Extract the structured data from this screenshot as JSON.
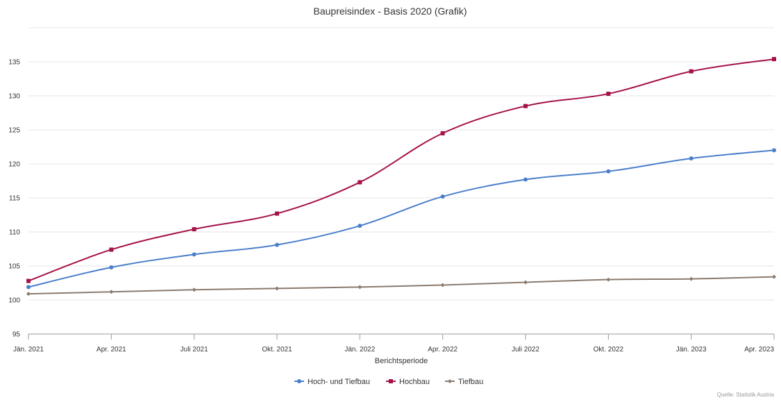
{
  "chart_data": {
    "type": "line",
    "title": "Baupreisindex - Basis 2020 (Grafik)",
    "xlabel": "Berichtsperiode",
    "ylabel": "",
    "categories": [
      "Jän. 2021",
      "Apr. 2021",
      "Juli 2021",
      "Okt. 2021",
      "Jän. 2022",
      "Apr. 2022",
      "Juli 2022",
      "Okt. 2022",
      "Jän. 2023",
      "Apr. 2023"
    ],
    "ylim": [
      95,
      140
    ],
    "yticks": [
      "95",
      "100",
      "105",
      "110",
      "115",
      "120",
      "125",
      "130",
      "135"
    ],
    "grid": true,
    "legend_position": "bottom-center",
    "source": "Quelle: Statistik Austria",
    "series": [
      {
        "name": "Hoch- und Tiefbau",
        "color": "#4a7ecb",
        "marker": "circle",
        "values": [
          101.9,
          104.8,
          106.7,
          108.1,
          110.9,
          115.2,
          117.7,
          118.9,
          120.8,
          122.0
        ]
      },
      {
        "name": "Hochbau",
        "color": "#a5114a",
        "marker": "square",
        "values": [
          102.8,
          107.4,
          110.4,
          112.7,
          117.3,
          124.5,
          128.5,
          130.3,
          133.6,
          135.4
        ]
      },
      {
        "name": "Tiefbau",
        "color": "#8a7a6e",
        "marker": "diamond",
        "values": [
          100.9,
          101.2,
          101.5,
          101.7,
          101.9,
          102.2,
          102.6,
          103.0,
          103.1,
          103.4
        ]
      }
    ]
  }
}
